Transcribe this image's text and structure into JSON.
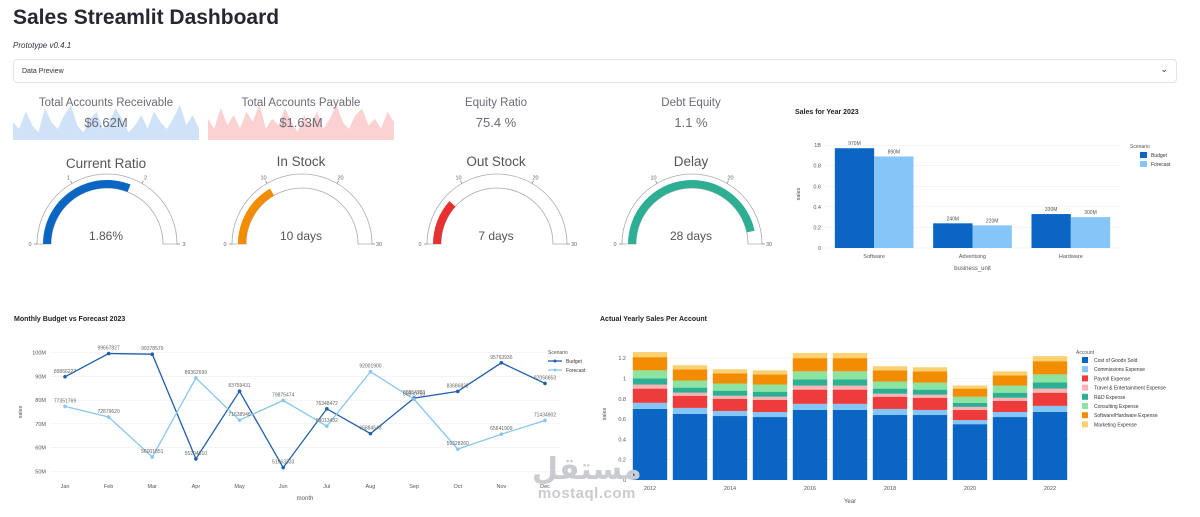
{
  "header": {
    "title": "Sales Streamlit Dashboard",
    "subtitle": "Prototype v0.4.1"
  },
  "expander": {
    "label": "Data Preview",
    "icon": "chevron-down-icon"
  },
  "metrics": [
    {
      "label": "Total Accounts Receivable",
      "value": "$6.62M",
      "spark": [
        0.5,
        0.3,
        0.8,
        0.4,
        0.2,
        0.9,
        0.5,
        0.3,
        0.7,
        1.0,
        0.4,
        0.2,
        0.6,
        0.8,
        0.3,
        0.5,
        0.9,
        0.6,
        0.2,
        0.4,
        0.7,
        0.3,
        0.8,
        0.5,
        0.3,
        0.6,
        1.0,
        0.4,
        0.7,
        0.3
      ],
      "color": "#cfe2f7"
    },
    {
      "label": "Total Accounts Payable",
      "value": "$1.63M",
      "spark": [
        0.6,
        0.3,
        0.9,
        0.4,
        0.7,
        0.3,
        0.8,
        0.5,
        1.0,
        0.3,
        0.6,
        0.4,
        0.9,
        0.5,
        0.2,
        0.7,
        0.4,
        0.8,
        0.3,
        0.6,
        1.0,
        0.5,
        0.3,
        0.7,
        0.9,
        0.4,
        0.6,
        0.3,
        0.8,
        0.5
      ],
      "color": "#fbd1d1"
    },
    {
      "label": "Equity Ratio",
      "value": "75.4 %"
    },
    {
      "label": "Debt Equity",
      "value": "1.1 %"
    }
  ],
  "gauges": [
    {
      "title": "Current Ratio",
      "value": 1.86,
      "display": "1.86%",
      "max": 3,
      "ticks": [
        "0",
        "1",
        "2",
        "3"
      ],
      "color": "#0b66c3"
    },
    {
      "title": "In Stock",
      "value": 10,
      "display": "10 days",
      "max": 30,
      "ticks": [
        "0",
        "10",
        "20",
        "30"
      ],
      "color": "#f28c00"
    },
    {
      "title": "Out Stock",
      "value": 7,
      "display": "7 days",
      "max": 30,
      "ticks": [
        "0",
        "10",
        "20",
        "30"
      ],
      "color": "#e73030"
    },
    {
      "title": "Delay",
      "value": 28,
      "display": "28 days",
      "max": 30,
      "ticks": [
        "0",
        "10",
        "20",
        "30"
      ],
      "color": "#2eaf94"
    }
  ],
  "charts": {
    "sales_year": {
      "title": "Sales for Year 2023"
    },
    "monthly": {
      "title": "Monthly Budget vs Forecast 2023"
    },
    "yearly": {
      "title": "Actual Yearly Sales Per Account"
    }
  },
  "chart_data": [
    {
      "type": "bar",
      "title": "Sales for Year 2023",
      "xlabel": "business_unit",
      "ylabel": "sales",
      "categories": [
        "Software",
        "Advertising",
        "Hardware"
      ],
      "series": [
        {
          "name": "Budget",
          "values": [
            970,
            240,
            330
          ],
          "labels": [
            "970M",
            "240M",
            "330M"
          ],
          "color": "#0b66c3"
        },
        {
          "name": "Forecast",
          "values": [
            890,
            220,
            300
          ],
          "labels": [
            "890M",
            "220M",
            "300M"
          ],
          "color": "#85c5f7"
        }
      ],
      "ylim": [
        0,
        1050
      ],
      "yticks": [
        {
          "v": 0,
          "t": "0"
        },
        {
          "v": 200,
          "t": "0.2"
        },
        {
          "v": 400,
          "t": "0.4"
        },
        {
          "v": 600,
          "t": "0.6"
        },
        {
          "v": 800,
          "t": "0.8"
        },
        {
          "v": 1000,
          "t": "1B"
        }
      ],
      "legend": {
        "title": "Scenario",
        "placement": "right"
      }
    },
    {
      "type": "line",
      "title": "Monthly Budget vs Forecast 2023",
      "xlabel": "month",
      "ylabel": "sales",
      "categories": [
        "Jan",
        "Feb",
        "Mar",
        "Apr",
        "May",
        "Jun",
        "Jul",
        "Aug",
        "Sep",
        "Oct",
        "Nov",
        "Dec"
      ],
      "series": [
        {
          "name": "Budget",
          "values": [
            89.87,
            99.67,
            99.38,
            55.2,
            83.76,
            51.56,
            76.35,
            65.88,
            80.86,
            83.68,
            95.76,
            87.06
          ],
          "labels": [
            "89866227",
            "99667827",
            "99378579",
            "55204610",
            "83759431",
            "51563333",
            "76348472",
            "65884543",
            "80864203",
            "83686832",
            "95763936",
            "87056653"
          ],
          "color": "#1f5fa8"
        },
        {
          "name": "Forecast",
          "values": [
            77.35,
            72.88,
            56.0,
            89.36,
            71.54,
            79.88,
            69.01,
            92.0,
            80.35,
            59.33,
            65.64,
            71.43
          ],
          "labels": [
            "77351769",
            "72879620",
            "56001851",
            "89362699",
            "71538948",
            "79875474",
            "69013432",
            "92001900",
            "80350769",
            "59328260",
            "65641909",
            "71434902"
          ],
          "color": "#88c7ee"
        }
      ],
      "ylim": [
        48,
        102
      ],
      "yticks": [
        {
          "v": 50,
          "t": "50M"
        },
        {
          "v": 60,
          "t": "60M"
        },
        {
          "v": 70,
          "t": "70M"
        },
        {
          "v": 80,
          "t": "80M"
        },
        {
          "v": 90,
          "t": "90M"
        },
        {
          "v": 100,
          "t": "100M"
        }
      ],
      "legend": {
        "title": "Scenario",
        "placement": "right"
      }
    },
    {
      "type": "bar",
      "stacked": true,
      "title": "Actual Yearly Sales Per Account",
      "xlabel": "Year",
      "ylabel": "sales",
      "categories": [
        "2012",
        "2013",
        "2014",
        "2015",
        "2016",
        "2017",
        "2018",
        "2019",
        "2020",
        "2021",
        "2022"
      ],
      "xtick_labels": [
        "2012",
        "2014",
        "2016",
        "2018",
        "2020",
        "2022"
      ],
      "series": [
        {
          "name": "Cost of Goods Sold",
          "color": "#0b66c3",
          "values": [
            0.7,
            0.65,
            0.63,
            0.62,
            0.69,
            0.69,
            0.64,
            0.64,
            0.55,
            0.62,
            0.67
          ]
        },
        {
          "name": "Commissions Expense",
          "color": "#85c5f7",
          "values": [
            0.06,
            0.06,
            0.05,
            0.05,
            0.06,
            0.06,
            0.06,
            0.05,
            0.04,
            0.05,
            0.06
          ]
        },
        {
          "name": "Payroll Expense",
          "color": "#ee3b3b",
          "values": [
            0.14,
            0.12,
            0.12,
            0.12,
            0.14,
            0.14,
            0.12,
            0.12,
            0.1,
            0.11,
            0.13
          ]
        },
        {
          "name": "Travel & Entertainment Expense",
          "color": "#fbb4b4",
          "values": [
            0.04,
            0.03,
            0.03,
            0.03,
            0.04,
            0.04,
            0.03,
            0.03,
            0.03,
            0.03,
            0.04
          ]
        },
        {
          "name": "R&D Expense",
          "color": "#2eaf94",
          "values": [
            0.06,
            0.05,
            0.05,
            0.05,
            0.06,
            0.06,
            0.05,
            0.05,
            0.04,
            0.05,
            0.06
          ]
        },
        {
          "name": "Consulting Expense",
          "color": "#8de3a0",
          "values": [
            0.08,
            0.07,
            0.07,
            0.07,
            0.08,
            0.08,
            0.07,
            0.07,
            0.06,
            0.07,
            0.08
          ]
        },
        {
          "name": "Software/Hardware Expense",
          "color": "#f28c00",
          "values": [
            0.13,
            0.11,
            0.1,
            0.1,
            0.13,
            0.13,
            0.11,
            0.11,
            0.08,
            0.1,
            0.13
          ]
        },
        {
          "name": "Marketing Expense",
          "color": "#fbd070",
          "values": [
            0.05,
            0.04,
            0.04,
            0.04,
            0.05,
            0.05,
            0.04,
            0.04,
            0.03,
            0.04,
            0.05
          ]
        }
      ],
      "ylim": [
        0,
        1.3
      ],
      "yticks": [
        {
          "v": 0,
          "t": "0"
        },
        {
          "v": 0.2,
          "t": "0.2"
        },
        {
          "v": 0.4,
          "t": "0.4"
        },
        {
          "v": 0.6,
          "t": "0.6"
        },
        {
          "v": 0.8,
          "t": "0.8"
        },
        {
          "v": 1,
          "t": "1"
        },
        {
          "v": 1.2,
          "t": "1.2"
        }
      ],
      "legend": {
        "title": "Account",
        "placement": "right"
      }
    }
  ],
  "watermark": {
    "arabic": "مستقل",
    "latin": "mostaql.com"
  }
}
